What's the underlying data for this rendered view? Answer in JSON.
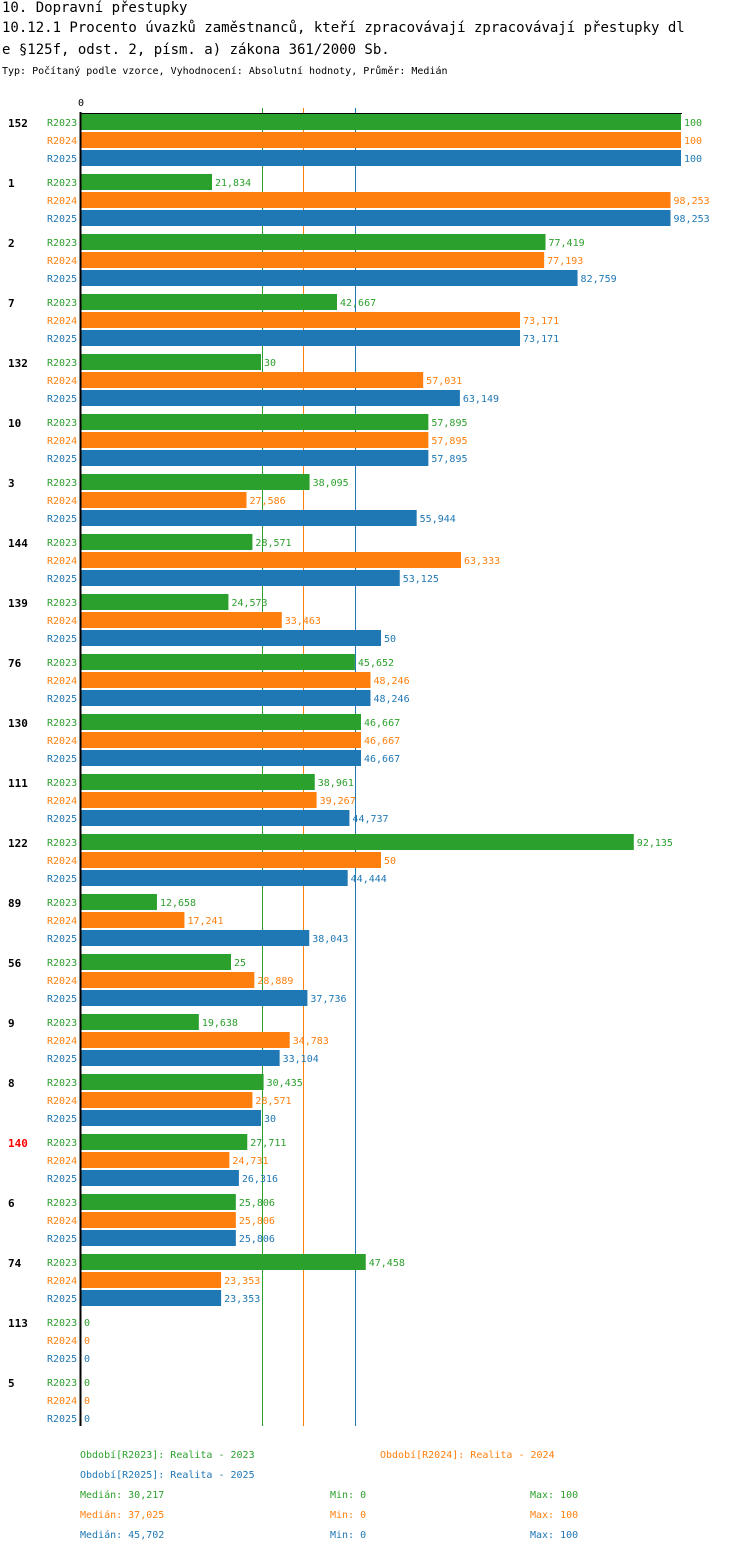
{
  "header": {
    "line1": "10. Dopravní přestupky",
    "line2": "10.12.1 Procento úvazků zaměstnanců, kteří zpracovávají zpracovávají přestupky dl",
    "line3": "e §125f, odst. 2, písm. a) zákona 361/2000 Sb.",
    "subtitle": "Typ: Počítaný podle vzorce, Vyhodnocení: Absolutní hodnoty, Průměr: Medián"
  },
  "colors": {
    "R2023": "#2ca02c",
    "R2024": "#ff7f0e",
    "R2025": "#1f77b4",
    "highlight": "#ff0000",
    "axis": "#000000"
  },
  "chart_data": {
    "type": "bar",
    "orientation": "horizontal",
    "axis_zero_label": "0",
    "xlim": [
      0,
      100
    ],
    "series_names": [
      "R2023",
      "R2024",
      "R2025"
    ],
    "categories": [
      {
        "label": "152",
        "highlight": false,
        "values": [
          "100",
          "100",
          "100"
        ]
      },
      {
        "label": "1",
        "highlight": false,
        "values": [
          "21,834",
          "98,253",
          "98,253"
        ]
      },
      {
        "label": "2",
        "highlight": false,
        "values": [
          "77,419",
          "77,193",
          "82,759"
        ]
      },
      {
        "label": "7",
        "highlight": false,
        "values": [
          "42,667",
          "73,171",
          "73,171"
        ]
      },
      {
        "label": "132",
        "highlight": false,
        "values": [
          "30",
          "57,031",
          "63,149"
        ]
      },
      {
        "label": "10",
        "highlight": false,
        "values": [
          "57,895",
          "57,895",
          "57,895"
        ]
      },
      {
        "label": "3",
        "highlight": false,
        "values": [
          "38,095",
          "27,586",
          "55,944"
        ]
      },
      {
        "label": "144",
        "highlight": false,
        "values": [
          "28,571",
          "63,333",
          "53,125"
        ]
      },
      {
        "label": "139",
        "highlight": false,
        "values": [
          "24,573",
          "33,463",
          "50"
        ]
      },
      {
        "label": "76",
        "highlight": false,
        "values": [
          "45,652",
          "48,246",
          "48,246"
        ]
      },
      {
        "label": "130",
        "highlight": false,
        "values": [
          "46,667",
          "46,667",
          "46,667"
        ]
      },
      {
        "label": "111",
        "highlight": false,
        "values": [
          "38,961",
          "39,267",
          "44,737"
        ]
      },
      {
        "label": "122",
        "highlight": false,
        "values": [
          "92,135",
          "50",
          "44,444"
        ]
      },
      {
        "label": "89",
        "highlight": false,
        "values": [
          "12,658",
          "17,241",
          "38,043"
        ]
      },
      {
        "label": "56",
        "highlight": false,
        "values": [
          "25",
          "28,889",
          "37,736"
        ]
      },
      {
        "label": "9",
        "highlight": false,
        "values": [
          "19,638",
          "34,783",
          "33,104"
        ]
      },
      {
        "label": "8",
        "highlight": false,
        "values": [
          "30,435",
          "28,571",
          "30"
        ]
      },
      {
        "label": "140",
        "highlight": true,
        "values": [
          "27,711",
          "24,731",
          "26,316"
        ]
      },
      {
        "label": "6",
        "highlight": false,
        "values": [
          "25,806",
          "25,806",
          "25,806"
        ]
      },
      {
        "label": "74",
        "highlight": false,
        "values": [
          "47,458",
          "23,353",
          "23,353"
        ]
      },
      {
        "label": "113",
        "highlight": false,
        "values": [
          "0",
          "0",
          "0"
        ]
      },
      {
        "label": "5",
        "highlight": false,
        "values": [
          "0",
          "0",
          "0"
        ]
      }
    ],
    "median_lines": [
      {
        "series": "R2023",
        "value": 30.217
      },
      {
        "series": "R2024",
        "value": 37.025
      },
      {
        "series": "R2025",
        "value": 45.702
      }
    ]
  },
  "legend": {
    "period_r2023": "Období[R2023]: Realita - 2023",
    "period_r2024": "Období[R2024]: Realita - 2024",
    "period_r2025": "Období[R2025]: Realita - 2025",
    "stats": [
      {
        "series": "R2023",
        "median": "Medián: 30,217",
        "min": "Min: 0",
        "max": "Max: 100"
      },
      {
        "series": "R2024",
        "median": "Medián: 37,025",
        "min": "Min: 0",
        "max": "Max: 100"
      },
      {
        "series": "R2025",
        "median": "Medián: 45,702",
        "min": "Min: 0",
        "max": "Max: 100"
      }
    ]
  }
}
